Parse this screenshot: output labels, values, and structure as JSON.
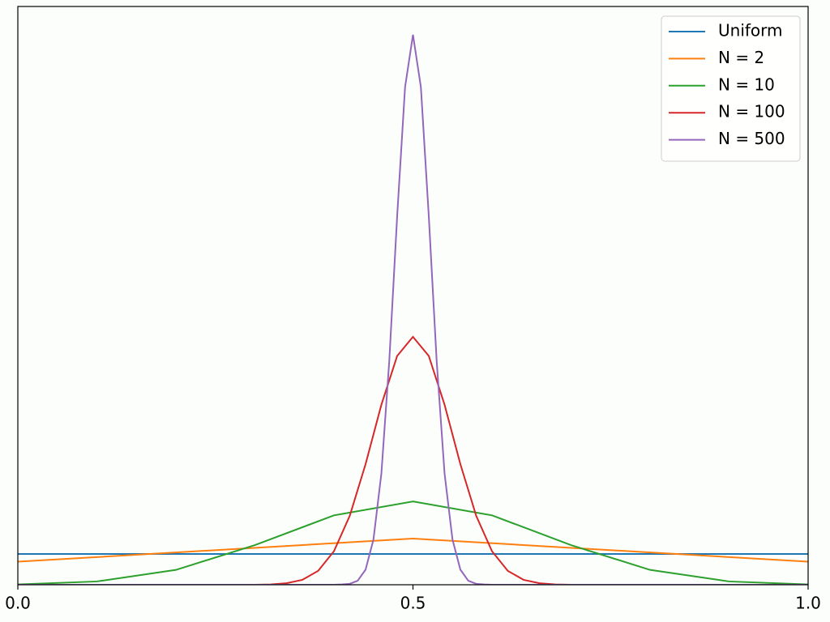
{
  "chart_data": {
    "type": "line",
    "xlim": [
      0,
      1
    ],
    "ylim": [
      0,
      18.8
    ],
    "xticks": [
      {
        "value": 0,
        "label": "0.0"
      },
      0.5,
      {
        "value": 1,
        "label": "1.0"
      }
    ],
    "legend": "upper right",
    "series": [
      {
        "name": "Uniform",
        "color": "#1f77b4",
        "x": [
          0,
          1
        ],
        "values": [
          1,
          1
        ]
      },
      {
        "name": "N = 2",
        "color": "#ff7f0e",
        "x": [
          0,
          0.5,
          1
        ],
        "values": [
          0.75,
          1.5,
          0.75
        ]
      },
      {
        "name": "N = 10",
        "color": "#2ca02c",
        "x": [
          0,
          0.1,
          0.2,
          0.3,
          0.4,
          0.5,
          0.6,
          0.7,
          0.8,
          0.9,
          1
        ],
        "values": [
          0.0107,
          0.107,
          0.483,
          1.289,
          2.256,
          2.707,
          2.256,
          1.289,
          0.483,
          0.107,
          0.0107
        ]
      },
      {
        "name": "N = 100",
        "color": "#d62728",
        "x": [
          0,
          0.3,
          0.32,
          0.34,
          0.36,
          0.38,
          0.4,
          0.42,
          0.44,
          0.46,
          0.48,
          0.5,
          0.52,
          0.54,
          0.56,
          0.58,
          0.6,
          0.62,
          0.64,
          0.66,
          0.68,
          0.7,
          1
        ],
        "values": [
          0,
          0,
          0.01,
          0.05,
          0.16,
          0.45,
          1.09,
          2.24,
          3.92,
          5.85,
          7.44,
          8.06,
          7.44,
          5.85,
          3.92,
          2.24,
          1.09,
          0.45,
          0.16,
          0.05,
          0.01,
          0,
          0
        ]
      },
      {
        "name": "N = 500",
        "color": "#9467bd",
        "x": [
          0,
          0.4,
          0.41,
          0.42,
          0.43,
          0.44,
          0.45,
          0.46,
          0.47,
          0.48,
          0.49,
          0.5,
          0.51,
          0.52,
          0.53,
          0.54,
          0.55,
          0.56,
          0.57,
          0.58,
          0.59,
          0.6,
          1
        ],
        "values": [
          0,
          0,
          0.01,
          0.03,
          0.13,
          0.49,
          1.47,
          3.61,
          7.27,
          11.99,
          16.18,
          17.88,
          16.18,
          11.99,
          7.27,
          3.61,
          1.47,
          0.49,
          0.13,
          0.03,
          0.01,
          0,
          0
        ]
      }
    ]
  }
}
